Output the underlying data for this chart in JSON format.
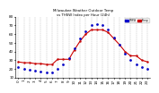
{
  "title": "Milwaukee Weather Outdoor Temperature\nvs THSW Index\nper Hour\n(24 Hours)",
  "hours": [
    0,
    1,
    2,
    3,
    4,
    5,
    6,
    7,
    8,
    9,
    10,
    11,
    12,
    13,
    14,
    15,
    16,
    17,
    18,
    19,
    20,
    21,
    22,
    23
  ],
  "temp": [
    28,
    27,
    27,
    26,
    26,
    25,
    25,
    31,
    31,
    31,
    42,
    52,
    60,
    65,
    65,
    65,
    62,
    55,
    48,
    40,
    35,
    35,
    30,
    28
  ],
  "thsw": [
    22,
    20,
    19,
    18,
    17,
    16,
    16,
    20,
    25,
    32,
    44,
    55,
    63,
    70,
    72,
    70,
    65,
    56,
    48,
    38,
    30,
    25,
    22,
    20
  ],
  "temp_color": "#cc0000",
  "thsw_color": "#0000cc",
  "bg_color": "#ffffff",
  "ylim": [
    10,
    80
  ],
  "legend_temp_color": "#cc0000",
  "legend_thsw_color": "#0000cc"
}
